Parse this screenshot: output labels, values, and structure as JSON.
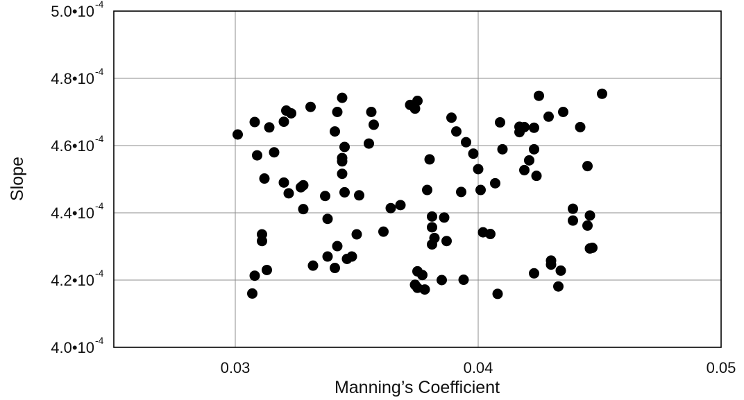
{
  "chart_data": {
    "type": "scatter",
    "xlabel": "Manning’s Coefficient",
    "ylabel": "Slope",
    "xlim": [
      0.025,
      0.05
    ],
    "ylim": [
      0.0004,
      0.0005
    ],
    "x_ticks": [
      {
        "value": 0.03,
        "label": "0.03"
      },
      {
        "value": 0.04,
        "label": "0.04"
      },
      {
        "value": 0.05,
        "label": "0.05"
      }
    ],
    "y_ticks": [
      {
        "value": 0.0004,
        "mantissa": "4.0",
        "sep": "•",
        "base": "10",
        "exp": "-4"
      },
      {
        "value": 0.00042,
        "mantissa": "4.2",
        "sep": "•",
        "base": "10",
        "exp": "-4"
      },
      {
        "value": 0.00044,
        "mantissa": "4.4",
        "sep": "•",
        "base": "10",
        "exp": "-4"
      },
      {
        "value": 0.00046,
        "mantissa": "4.6",
        "sep": "•",
        "base": "10",
        "exp": "-4"
      },
      {
        "value": 0.00048,
        "mantissa": "4.8",
        "sep": "•",
        "base": "10",
        "exp": "-4"
      },
      {
        "value": 0.0005,
        "mantissa": "5.0",
        "sep": "•",
        "base": "10",
        "exp": "-4"
      }
    ],
    "grid": true,
    "marker_color": "#000000",
    "grid_color": "#8c8c8c",
    "axis_color": "#000000",
    "points": [
      [
        0.0301,
        0.0004633
      ],
      [
        0.0308,
        0.000467
      ],
      [
        0.0309,
        0.0004571
      ],
      [
        0.0312,
        0.0004502
      ],
      [
        0.0314,
        0.0004654
      ],
      [
        0.0316,
        0.000458
      ],
      [
        0.032,
        0.000449
      ],
      [
        0.032,
        0.0004671
      ],
      [
        0.0321,
        0.0004704
      ],
      [
        0.0323,
        0.0004696
      ],
      [
        0.0322,
        0.0004458
      ],
      [
        0.0327,
        0.0004476
      ],
      [
        0.0328,
        0.0004482
      ],
      [
        0.0328,
        0.0004411
      ],
      [
        0.0331,
        0.0004715
      ],
      [
        0.0337,
        0.000445
      ],
      [
        0.0338,
        0.0004382
      ],
      [
        0.0341,
        0.0004642
      ],
      [
        0.0342,
        0.00047
      ],
      [
        0.0344,
        0.0004742
      ],
      [
        0.0344,
        0.0004563
      ],
      [
        0.0344,
        0.0004553
      ],
      [
        0.0344,
        0.0004516
      ],
      [
        0.0345,
        0.0004596
      ],
      [
        0.0345,
        0.0004461
      ],
      [
        0.0355,
        0.0004606
      ],
      [
        0.0356,
        0.00047
      ],
      [
        0.0357,
        0.0004662
      ],
      [
        0.0351,
        0.0004452
      ],
      [
        0.0364,
        0.0004414
      ],
      [
        0.0368,
        0.0004423
      ],
      [
        0.0361,
        0.0004344
      ],
      [
        0.035,
        0.0004336
      ],
      [
        0.0342,
        0.0004301
      ],
      [
        0.0338,
        0.000427
      ],
      [
        0.0346,
        0.0004263
      ],
      [
        0.0348,
        0.000427
      ],
      [
        0.0341,
        0.0004236
      ],
      [
        0.0332,
        0.0004243
      ],
      [
        0.0311,
        0.0004336
      ],
      [
        0.0311,
        0.0004316
      ],
      [
        0.0313,
        0.000423
      ],
      [
        0.0308,
        0.0004213
      ],
      [
        0.0307,
        0.000416
      ],
      [
        0.0372,
        0.0004721
      ],
      [
        0.0374,
        0.000471
      ],
      [
        0.0375,
        0.0004733
      ],
      [
        0.0389,
        0.0004683
      ],
      [
        0.0391,
        0.0004642
      ],
      [
        0.0395,
        0.000461
      ],
      [
        0.0398,
        0.0004576
      ],
      [
        0.04,
        0.000453
      ],
      [
        0.038,
        0.0004559
      ],
      [
        0.0379,
        0.0004468
      ],
      [
        0.0393,
        0.0004462
      ],
      [
        0.0401,
        0.0004468
      ],
      [
        0.0381,
        0.0004389
      ],
      [
        0.0381,
        0.0004357
      ],
      [
        0.0386,
        0.0004386
      ],
      [
        0.0382,
        0.0004325
      ],
      [
        0.0381,
        0.0004306
      ],
      [
        0.0387,
        0.0004316
      ],
      [
        0.0375,
        0.0004226
      ],
      [
        0.0377,
        0.0004215
      ],
      [
        0.0374,
        0.0004186
      ],
      [
        0.0375,
        0.0004177
      ],
      [
        0.0378,
        0.0004172
      ],
      [
        0.0385,
        0.00042
      ],
      [
        0.0394,
        0.0004201
      ],
      [
        0.0407,
        0.0004488
      ],
      [
        0.0409,
        0.0004669
      ],
      [
        0.041,
        0.0004589
      ],
      [
        0.0417,
        0.000464
      ],
      [
        0.0417,
        0.0004656
      ],
      [
        0.0419,
        0.0004655
      ],
      [
        0.0423,
        0.0004653
      ],
      [
        0.0425,
        0.0004748
      ],
      [
        0.0429,
        0.0004686
      ],
      [
        0.0435,
        0.00047
      ],
      [
        0.0442,
        0.0004655
      ],
      [
        0.0423,
        0.0004589
      ],
      [
        0.0421,
        0.0004556
      ],
      [
        0.0419,
        0.0004527
      ],
      [
        0.0424,
        0.000451
      ],
      [
        0.0445,
        0.0004539
      ],
      [
        0.0451,
        0.0004754
      ],
      [
        0.0439,
        0.0004412
      ],
      [
        0.0439,
        0.0004377
      ],
      [
        0.0446,
        0.0004392
      ],
      [
        0.0445,
        0.0004362
      ],
      [
        0.0402,
        0.0004342
      ],
      [
        0.0405,
        0.0004337
      ],
      [
        0.0446,
        0.0004294
      ],
      [
        0.0447,
        0.0004296
      ],
      [
        0.043,
        0.0004258
      ],
      [
        0.043,
        0.0004246
      ],
      [
        0.0434,
        0.0004228
      ],
      [
        0.0423,
        0.000422
      ],
      [
        0.0433,
        0.0004181
      ],
      [
        0.0408,
        0.0004159
      ]
    ]
  }
}
